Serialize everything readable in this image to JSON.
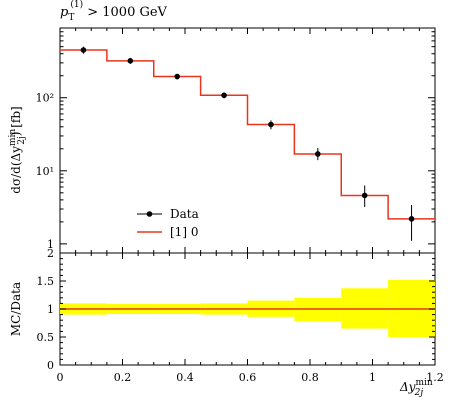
{
  "chart_data": {
    "type": "line",
    "title_main": "p",
    "title_sub": "T",
    "title_sup": "(1)",
    "title_rest": " > 1000 GeV",
    "ylabel_main": "dσ/d(Δy",
    "ylabel_sup": "min",
    "ylabel_sub": "2j",
    "ylabel_unit": ") [fb]",
    "xlabel_main": "Δy",
    "xlabel_sup": "min",
    "xlabel_sub": "2j",
    "ratio_ylabel": "MC/Data",
    "xlim": [
      0,
      1.2
    ],
    "ylim": [
      0.75,
      900
    ],
    "yscale": "log",
    "ratio_ylim": [
      0,
      2
    ],
    "x_ticks": [
      "0",
      "0.2",
      "0.4",
      "0.6",
      "0.8",
      "1",
      "1.2"
    ],
    "y_ticks": [
      "1",
      "10¹",
      "10²"
    ],
    "ratio_ticks": [
      "0",
      "0.5",
      "1",
      "1.5",
      "2"
    ],
    "bin_edges": [
      0,
      0.15,
      0.3,
      0.45,
      0.6,
      0.75,
      0.9,
      1.05,
      1.2
    ],
    "legend": [
      {
        "label": "Data",
        "color": "#000000"
      },
      {
        "label": "[1] 0",
        "color": "#e8361c"
      }
    ],
    "series": [
      {
        "name": "Data",
        "x": [
          0.075,
          0.225,
          0.375,
          0.525,
          0.675,
          0.825,
          0.975,
          1.125
        ],
        "y": [
          450,
          320,
          195,
          108,
          43,
          17,
          4.6,
          2.2
        ],
        "yerr_low": [
          400,
          290,
          178,
          98,
          37,
          14,
          3.2,
          1.1
        ],
        "yerr_high": [
          500,
          350,
          212,
          118,
          49,
          20.5,
          6.3,
          3.4
        ]
      },
      {
        "name": "[1] 0",
        "bin_values": [
          450,
          320,
          195,
          108,
          43,
          17,
          4.6,
          2.2
        ]
      }
    ],
    "ratio": {
      "mc_over_data": [
        1,
        1,
        1,
        1,
        1,
        1,
        1,
        1
      ],
      "band_low": [
        0.9,
        0.91,
        0.91,
        0.9,
        0.86,
        0.78,
        0.65,
        0.5
      ],
      "band_high": [
        1.1,
        1.09,
        1.09,
        1.1,
        1.15,
        1.2,
        1.37,
        1.52
      ],
      "band_color": "#ffff00"
    },
    "grid": false,
    "legend_position": "bottom-left"
  }
}
